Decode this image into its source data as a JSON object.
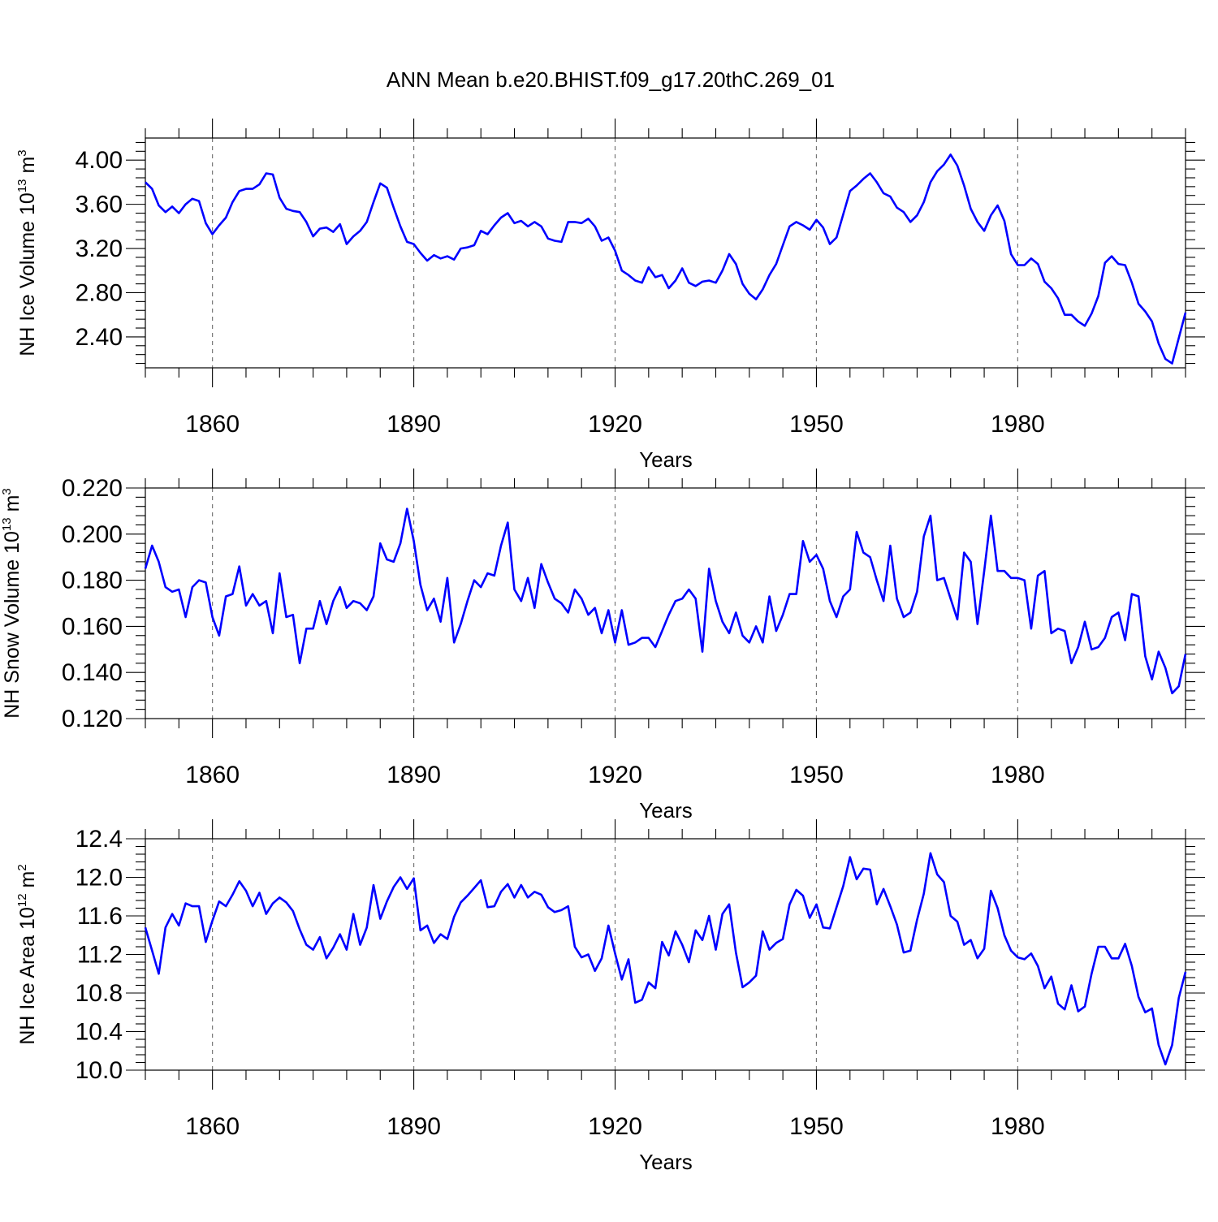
{
  "title": "ANN Mean b.e20.BHIST.f09_g17.20thC.269_01",
  "colors": {
    "line": "#0000ff",
    "grid": "#777777"
  },
  "chart_data": [
    {
      "type": "line",
      "ylabel_main": "NH Ice Volume 10",
      "ylabel_exp": "13",
      "ylabel_unit": " m",
      "ylabel_unit_exp": "3",
      "xlabel": "Years",
      "xlim": [
        1850,
        2005
      ],
      "ylim": [
        2.12,
        4.2
      ],
      "yticks": [
        2.4,
        2.8,
        3.2,
        3.6,
        4.0
      ],
      "ytick_labels": [
        "2.40",
        "2.80",
        "3.20",
        "3.60",
        "4.00"
      ],
      "xticks": [
        1860,
        1890,
        1920,
        1950,
        1980
      ],
      "xtick_labels": [
        "1860",
        "1890",
        "1920",
        "1950",
        "1980"
      ],
      "grid": "vertical dashed at major x ticks",
      "series": [
        {
          "x_start": 1850,
          "values": [
            3.8,
            3.74,
            3.59,
            3.53,
            3.58,
            3.52,
            3.6,
            3.65,
            3.63,
            3.43,
            3.33,
            3.41,
            3.48,
            3.62,
            3.72,
            3.74,
            3.74,
            3.78,
            3.88,
            3.87,
            3.66,
            3.56,
            3.54,
            3.53,
            3.44,
            3.31,
            3.38,
            3.39,
            3.35,
            3.42,
            3.24,
            3.31,
            3.36,
            3.44,
            3.62,
            3.79,
            3.75,
            3.57,
            3.4,
            3.26,
            3.24,
            3.16,
            3.09,
            3.14,
            3.11,
            3.13,
            3.1,
            3.2,
            3.21,
            3.23,
            3.36,
            3.33,
            3.41,
            3.48,
            3.52,
            3.43,
            3.45,
            3.4,
            3.44,
            3.4,
            3.29,
            3.27,
            3.26,
            3.44,
            3.44,
            3.43,
            3.47,
            3.4,
            3.27,
            3.3,
            3.18,
            3.0,
            2.96,
            2.91,
            2.89,
            3.03,
            2.94,
            2.96,
            2.84,
            2.91,
            3.02,
            2.89,
            2.86,
            2.9,
            2.91,
            2.89,
            3.0,
            3.15,
            3.06,
            2.88,
            2.79,
            2.74,
            2.83,
            2.96,
            3.06,
            3.23,
            3.4,
            3.44,
            3.41,
            3.37,
            3.46,
            3.39,
            3.24,
            3.3,
            3.51,
            3.72,
            3.77,
            3.83,
            3.88,
            3.8,
            3.7,
            3.67,
            3.57,
            3.53,
            3.44,
            3.5,
            3.62,
            3.8,
            3.9,
            3.96,
            4.05,
            3.95,
            3.77,
            3.56,
            3.44,
            3.36,
            3.5,
            3.59,
            3.45,
            3.15,
            3.05,
            3.05,
            3.11,
            3.06,
            2.9,
            2.84,
            2.75,
            2.6,
            2.6,
            2.54,
            2.5,
            2.61,
            2.77,
            3.07,
            3.13,
            3.06,
            3.05,
            2.89,
            2.7,
            2.63,
            2.54,
            2.34,
            2.2,
            2.16,
            2.39,
            2.62
          ]
        }
      ]
    },
    {
      "type": "line",
      "ylabel_main": "NH Snow Volume 10",
      "ylabel_exp": "13",
      "ylabel_unit": " m",
      "ylabel_unit_exp": "3",
      "xlabel": "Years",
      "xlim": [
        1850,
        2005
      ],
      "ylim": [
        0.12,
        0.22
      ],
      "yticks": [
        0.12,
        0.14,
        0.16,
        0.18,
        0.2,
        0.22
      ],
      "ytick_labels": [
        "0.120",
        "0.140",
        "0.160",
        "0.180",
        "0.200",
        "0.220"
      ],
      "xticks": [
        1860,
        1890,
        1920,
        1950,
        1980
      ],
      "xtick_labels": [
        "1860",
        "1890",
        "1920",
        "1950",
        "1980"
      ],
      "grid": "vertical dashed at major x ticks",
      "series": [
        {
          "x_start": 1850,
          "values": [
            0.185,
            0.195,
            0.188,
            0.177,
            0.175,
            0.176,
            0.164,
            0.177,
            0.18,
            0.179,
            0.164,
            0.156,
            0.173,
            0.174,
            0.186,
            0.169,
            0.174,
            0.169,
            0.171,
            0.157,
            0.183,
            0.164,
            0.165,
            0.144,
            0.159,
            0.159,
            0.171,
            0.161,
            0.171,
            0.177,
            0.168,
            0.171,
            0.17,
            0.167,
            0.173,
            0.196,
            0.189,
            0.188,
            0.196,
            0.211,
            0.197,
            0.178,
            0.167,
            0.172,
            0.162,
            0.181,
            0.153,
            0.161,
            0.171,
            0.18,
            0.177,
            0.183,
            0.182,
            0.195,
            0.205,
            0.176,
            0.171,
            0.181,
            0.168,
            0.187,
            0.179,
            0.172,
            0.17,
            0.166,
            0.176,
            0.172,
            0.165,
            0.168,
            0.157,
            0.167,
            0.153,
            0.167,
            0.152,
            0.153,
            0.155,
            0.155,
            0.151,
            0.158,
            0.165,
            0.171,
            0.172,
            0.176,
            0.172,
            0.149,
            0.185,
            0.171,
            0.162,
            0.157,
            0.166,
            0.156,
            0.153,
            0.16,
            0.153,
            0.173,
            0.158,
            0.165,
            0.174,
            0.174,
            0.197,
            0.188,
            0.191,
            0.185,
            0.171,
            0.164,
            0.173,
            0.176,
            0.201,
            0.192,
            0.19,
            0.18,
            0.171,
            0.195,
            0.172,
            0.164,
            0.166,
            0.175,
            0.199,
            0.208,
            0.18,
            0.181,
            0.172,
            0.163,
            0.192,
            0.188,
            0.161,
            0.184,
            0.208,
            0.184,
            0.184,
            0.181,
            0.181,
            0.18,
            0.159,
            0.182,
            0.184,
            0.157,
            0.159,
            0.158,
            0.144,
            0.151,
            0.162,
            0.15,
            0.151,
            0.155,
            0.164,
            0.166,
            0.154,
            0.174,
            0.173,
            0.147,
            0.137,
            0.149,
            0.142,
            0.131,
            0.134,
            0.148
          ]
        }
      ]
    },
    {
      "type": "line",
      "ylabel_main": "NH Ice Area 10",
      "ylabel_exp": "12",
      "ylabel_unit": " m",
      "ylabel_unit_exp": "2",
      "xlabel": "Years",
      "xlim": [
        1850,
        2005
      ],
      "ylim": [
        10.0,
        12.4
      ],
      "yticks": [
        10.0,
        10.4,
        10.8,
        11.2,
        11.6,
        12.0,
        12.4
      ],
      "ytick_labels": [
        "10.0",
        "10.4",
        "10.8",
        "11.2",
        "11.6",
        "12.0",
        "12.4"
      ],
      "xticks": [
        1860,
        1890,
        1920,
        1950,
        1980
      ],
      "xtick_labels": [
        "1860",
        "1890",
        "1920",
        "1950",
        "1980"
      ],
      "grid": "vertical dashed at major x ticks",
      "series": [
        {
          "x_start": 1850,
          "values": [
            11.48,
            11.24,
            11.0,
            11.48,
            11.62,
            11.5,
            11.73,
            11.7,
            11.7,
            11.33,
            11.55,
            11.75,
            11.7,
            11.82,
            11.96,
            11.86,
            11.7,
            11.84,
            11.62,
            11.73,
            11.79,
            11.74,
            11.65,
            11.46,
            11.3,
            11.25,
            11.38,
            11.16,
            11.27,
            11.41,
            11.25,
            11.62,
            11.3,
            11.48,
            11.92,
            11.57,
            11.75,
            11.9,
            12.0,
            11.88,
            11.99,
            11.45,
            11.5,
            11.32,
            11.41,
            11.36,
            11.59,
            11.74,
            11.81,
            11.89,
            11.97,
            11.69,
            11.7,
            11.85,
            11.93,
            11.79,
            11.92,
            11.79,
            11.85,
            11.82,
            11.69,
            11.64,
            11.66,
            11.7,
            11.28,
            11.17,
            11.2,
            11.03,
            11.16,
            11.5,
            11.21,
            10.94,
            11.15,
            10.7,
            10.73,
            10.91,
            10.85,
            11.33,
            11.19,
            11.44,
            11.3,
            11.12,
            11.45,
            11.35,
            11.6,
            11.25,
            11.62,
            11.72,
            11.22,
            10.86,
            10.91,
            10.98,
            11.44,
            11.25,
            11.32,
            11.36,
            11.72,
            11.87,
            11.81,
            11.58,
            11.72,
            11.48,
            11.47,
            11.69,
            11.91,
            12.21,
            11.98,
            12.09,
            12.08,
            11.72,
            11.88,
            11.7,
            11.51,
            11.22,
            11.24,
            11.56,
            11.83,
            12.25,
            12.03,
            11.95,
            11.6,
            11.54,
            11.3,
            11.35,
            11.16,
            11.26,
            11.86,
            11.68,
            11.4,
            11.24,
            11.17,
            11.15,
            11.21,
            11.08,
            10.85,
            10.97,
            10.69,
            10.63,
            10.88,
            10.61,
            10.66,
            11.0,
            11.28,
            11.28,
            11.16,
            11.16,
            11.31,
            11.08,
            10.76,
            10.6,
            10.64,
            10.26,
            10.06,
            10.26,
            10.75,
            11.02
          ]
        }
      ]
    }
  ]
}
